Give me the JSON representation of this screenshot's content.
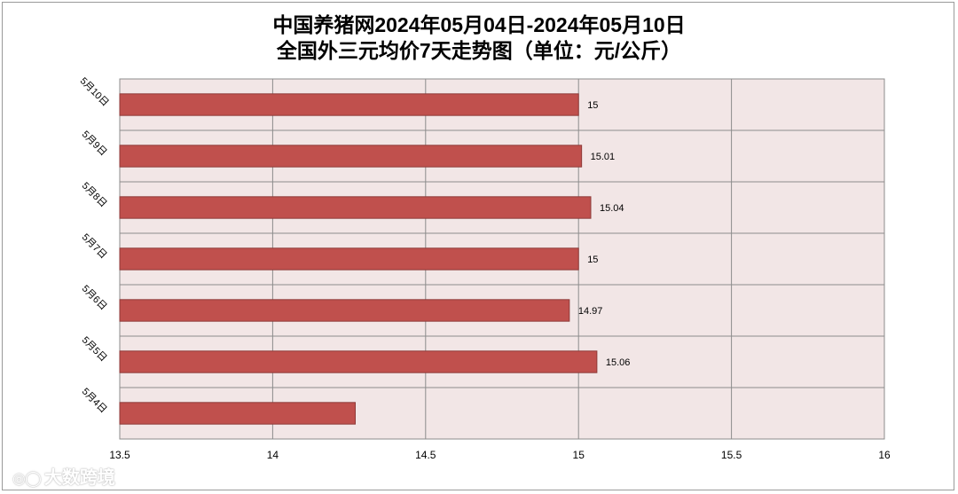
{
  "title_line1": "中国养猪网2024年05月04日-2024年05月10日",
  "title_line2": "全国外三元均价7天走势图（单位：元/公斤）",
  "watermark": "大数跨境",
  "chart_data": {
    "type": "bar",
    "orientation": "horizontal",
    "categories": [
      "5月10日",
      "5月9日",
      "5月8日",
      "5月7日",
      "5月6日",
      "5月5日",
      "5月4日"
    ],
    "values": [
      15,
      15.01,
      15.04,
      15,
      14.97,
      15.06,
      14.27
    ],
    "data_labels": [
      "15",
      "15.01",
      "15.04",
      "15",
      "14.97",
      "15.06",
      ""
    ],
    "x_ticks": [
      "13.5",
      "14",
      "14.5",
      "15",
      "15.5",
      "16"
    ],
    "xlim": [
      13.5,
      16
    ],
    "grid": true,
    "bar_color": "#c0504d",
    "plot_background": "#f2e6e6",
    "gridline_color": "#8c8c8c"
  }
}
